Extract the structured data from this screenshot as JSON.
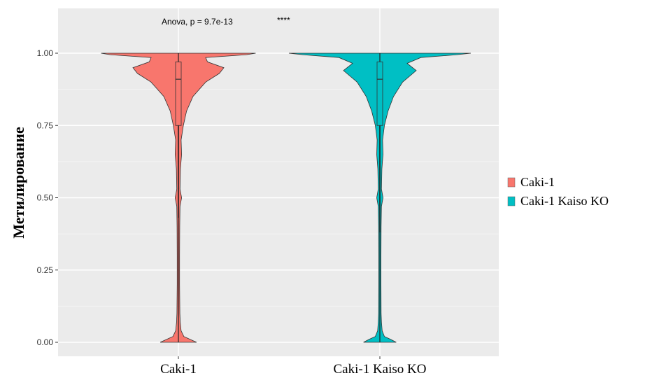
{
  "chart_data": {
    "type": "violin",
    "title": "",
    "xlabel": "",
    "ylabel": "Метилирование",
    "ylim": [
      0,
      1
    ],
    "y_ticks": [
      "0.00",
      "0.25",
      "0.50",
      "0.75",
      "1.00"
    ],
    "y_tick_values": [
      0,
      0.25,
      0.5,
      0.75,
      1.0
    ],
    "categories": [
      "Caki-1",
      "Caki-1 Kaiso KO"
    ],
    "grid": true,
    "legend_position": "right",
    "annotations": {
      "test": "Anova, p = 9.7e-13",
      "significance": "****"
    },
    "series": [
      {
        "name": "Caki-1",
        "color": "#F8766D",
        "box": {
          "q1": 0.75,
          "median": 0.91,
          "q3": 0.97,
          "whisker_low": 0.43,
          "whisker_high": 1.0
        },
        "density": [
          [
            0.0,
            0.2
          ],
          [
            0.01,
            0.13
          ],
          [
            0.02,
            0.06
          ],
          [
            0.04,
            0.03
          ],
          [
            0.07,
            0.02
          ],
          [
            0.1,
            0.016
          ],
          [
            0.2,
            0.013
          ],
          [
            0.3,
            0.013
          ],
          [
            0.4,
            0.015
          ],
          [
            0.47,
            0.018
          ],
          [
            0.5,
            0.035
          ],
          [
            0.53,
            0.018
          ],
          [
            0.6,
            0.022
          ],
          [
            0.65,
            0.035
          ],
          [
            0.7,
            0.03
          ],
          [
            0.75,
            0.055
          ],
          [
            0.8,
            0.09
          ],
          [
            0.85,
            0.16
          ],
          [
            0.9,
            0.3
          ],
          [
            0.93,
            0.45
          ],
          [
            0.95,
            0.5
          ],
          [
            0.97,
            0.32
          ],
          [
            0.985,
            0.3
          ],
          [
            0.995,
            0.75
          ],
          [
            1.0,
            0.85
          ]
        ]
      },
      {
        "name": "Caki-1 Kaiso KO",
        "color": "#00BFC4",
        "box": {
          "q1": 0.75,
          "median": 0.91,
          "q3": 0.97,
          "whisker_low": 0.38,
          "whisker_high": 1.0
        },
        "density": [
          [
            0.0,
            0.18
          ],
          [
            0.01,
            0.12
          ],
          [
            0.02,
            0.05
          ],
          [
            0.04,
            0.025
          ],
          [
            0.07,
            0.018
          ],
          [
            0.1,
            0.014
          ],
          [
            0.2,
            0.012
          ],
          [
            0.3,
            0.012
          ],
          [
            0.4,
            0.014
          ],
          [
            0.47,
            0.018
          ],
          [
            0.5,
            0.035
          ],
          [
            0.53,
            0.018
          ],
          [
            0.6,
            0.022
          ],
          [
            0.65,
            0.035
          ],
          [
            0.7,
            0.03
          ],
          [
            0.75,
            0.05
          ],
          [
            0.8,
            0.09
          ],
          [
            0.85,
            0.15
          ],
          [
            0.9,
            0.25
          ],
          [
            0.94,
            0.4
          ],
          [
            0.965,
            0.3
          ],
          [
            0.985,
            0.45
          ],
          [
            0.995,
            0.85
          ],
          [
            1.0,
            1.0
          ]
        ]
      }
    ]
  }
}
